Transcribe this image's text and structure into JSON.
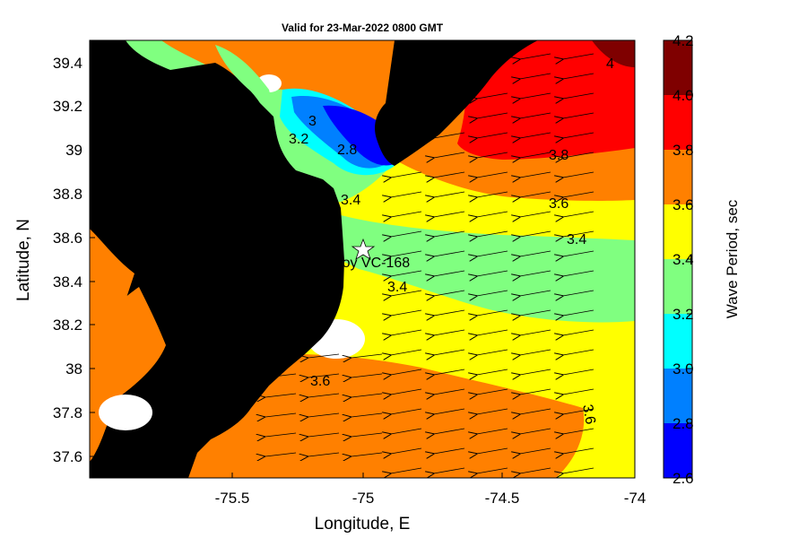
{
  "title": "Valid for 23-Mar-2022 0800 GMT",
  "xlabel": "Longitude, E",
  "ylabel": "Latitude, N",
  "x_ticks": [
    "-75.5",
    "-75",
    "-74.5",
    "-74"
  ],
  "y_ticks": [
    "39.4",
    "39.2",
    "39",
    "38.8",
    "38.6",
    "38.4",
    "38.2",
    "38",
    "37.8",
    "37.6"
  ],
  "colorbar": {
    "label": "Wave Period, sec",
    "ticks": [
      "4.2",
      "4.0",
      "3.8",
      "3.6",
      "3.4",
      "3.2",
      "3.0",
      "2.8",
      "2.6"
    ],
    "colors": [
      "#7f0000",
      "#ff0000",
      "#ff8000",
      "#ffff00",
      "#80ff80",
      "#00ffff",
      "#0080ff",
      "#0000ff"
    ]
  },
  "station": {
    "label": "Buoy VC-168"
  },
  "contour_labels": [
    "3.8",
    "3.6",
    "3.4",
    "3.4",
    "3.2",
    "3",
    "2.8",
    "3.4",
    "3.6",
    "3.6",
    "4"
  ],
  "colors": {
    "land": "#000000",
    "no_data": "#ffffff"
  },
  "chart_data": {
    "type": "heatmap",
    "title": "Valid for 23-Mar-2022 0800 GMT",
    "xlabel": "Longitude, E",
    "ylabel": "Latitude, N",
    "xlim": [
      -75.98,
      -74.0
    ],
    "ylim": [
      37.5,
      39.5
    ],
    "clim": [
      2.6,
      4.2
    ],
    "variable": "Wave Period, sec",
    "wave_direction": "toward west-southwest",
    "contour_levels": [
      2.8,
      3.0,
      3.2,
      3.4,
      3.6,
      3.8,
      4.0
    ]
  }
}
